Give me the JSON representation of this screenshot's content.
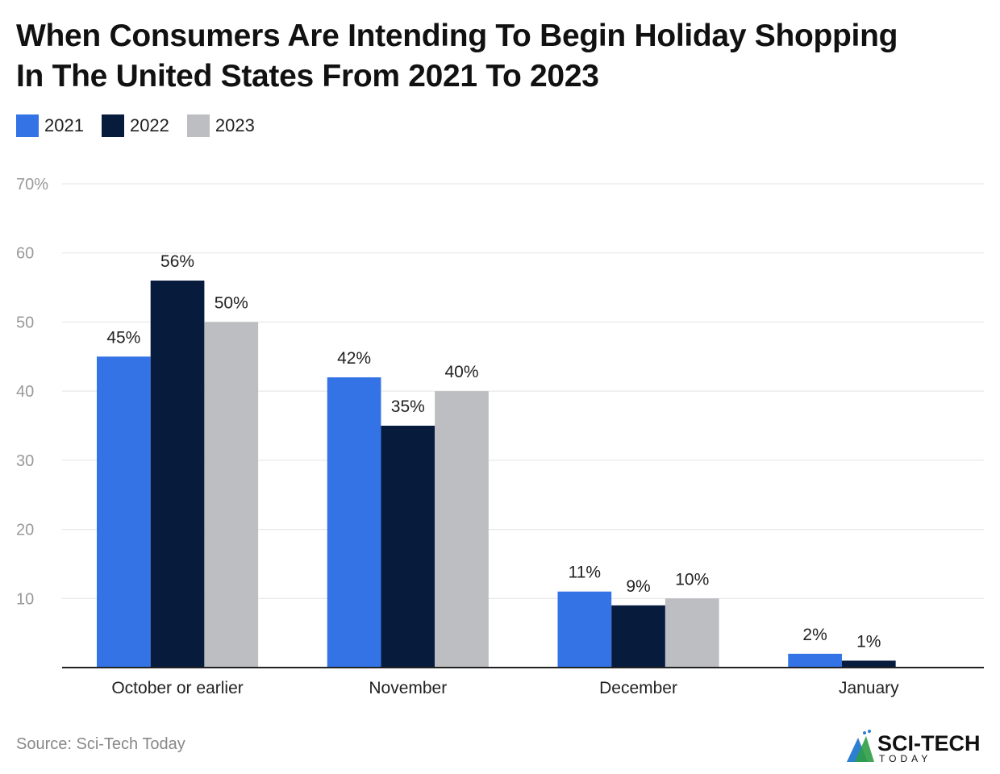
{
  "title_line1": "When Consumers Are Intending To Begin Holiday Shopping",
  "title_line2": "In The United States From 2021 To 2023",
  "source": "Source: Sci-Tech Today",
  "logo": {
    "text": "SCI-TECH",
    "subtext": "TODAY"
  },
  "chart_data": {
    "type": "bar",
    "title": "When Consumers Are Intending To Begin Holiday Shopping In The United States From 2021 To 2023",
    "categories": [
      "October or earlier",
      "November",
      "December",
      "January"
    ],
    "series": [
      {
        "name": "2021",
        "color": "#3373e6",
        "values": [
          45,
          42,
          11,
          2
        ]
      },
      {
        "name": "2022",
        "color": "#071b3d",
        "values": [
          56,
          35,
          9,
          1
        ]
      },
      {
        "name": "2023",
        "color": "#bdbec2",
        "values": [
          50,
          40,
          10,
          null
        ]
      }
    ],
    "data_labels": [
      [
        "45%",
        "42%",
        "11%",
        "2%"
      ],
      [
        "56%",
        "35%",
        "9%",
        "1%"
      ],
      [
        "50%",
        "40%",
        "10%",
        ""
      ]
    ],
    "yticks": [
      10,
      20,
      30,
      40,
      50,
      60,
      70
    ],
    "ytick_labels": [
      "10",
      "20",
      "30",
      "40",
      "50",
      "60",
      "70%"
    ],
    "ylim": [
      0,
      70
    ],
    "grid": true,
    "legend_position": "top-left"
  }
}
